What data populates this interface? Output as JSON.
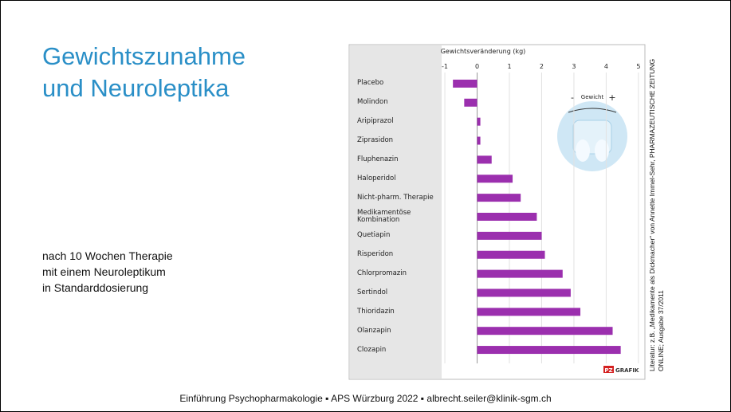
{
  "slide": {
    "title_lines": [
      "Gewichtszunahme",
      "und Neuroleptika"
    ],
    "note_lines": [
      "nach 10 Wochen Therapie",
      "mit einem Neuroleptikum",
      "in Standarddosierung"
    ],
    "source_lines": [
      "Literatur: z.B. „Medikamente als Dickmacher“ von Annette Immel-Sehr, PHARMAZEUTISCHE ZEITUNG",
      "ONLINE; Ausgabe 37/2011"
    ],
    "footer": "Einführung Psychopharmakologie ▪ APS Würzburg 2022 ▪ albrecht.seiler@klinik-sgm.ch"
  },
  "chart_data": {
    "type": "barh",
    "x_label": "Gewichtsveränderung (kg)",
    "categories": [
      "Placebo",
      "Molindon",
      "Aripiprazol",
      "Ziprasidon",
      "Fluphenazin",
      "Haloperidol",
      "Nicht-pharm. Therapie",
      "Medikamentöse Kombination",
      "Quetiapin",
      "Risperidon",
      "Chlorpromazin",
      "Sertindol",
      "Thioridazin",
      "Olanzapin",
      "Clozapin"
    ],
    "values": [
      -0.75,
      -0.4,
      0.1,
      0.1,
      0.45,
      1.1,
      1.35,
      1.85,
      2.0,
      2.1,
      2.65,
      2.9,
      3.2,
      4.2,
      4.45
    ],
    "color": "#9b2fae",
    "xlim": [
      -1.1,
      5.2
    ],
    "xticks": [
      -1,
      0,
      1,
      2,
      3,
      4,
      5
    ],
    "grid": true,
    "annotations": {
      "scale_label": "Gewicht",
      "minus": "-",
      "plus": "+",
      "logo_pz": "PZ",
      "logo_text": "GRAFIK"
    }
  }
}
